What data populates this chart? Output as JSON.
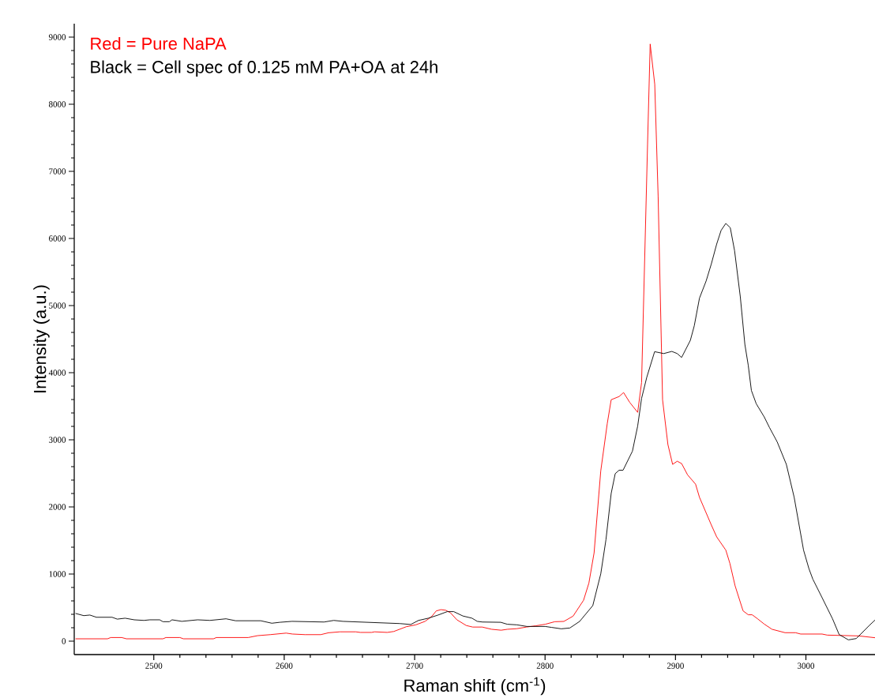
{
  "chart_data": {
    "type": "line",
    "xlabel": "Raman shift (cm$^{-1}$)",
    "ylabel": "Intensity (a.u.)",
    "annotations": [
      "Red = Pure NaPA",
      "Black = Cell spec of 0.125 mM PA+OA at 24h"
    ],
    "xlim": [
      2439,
      3053
    ],
    "ylim": [
      -200,
      9200
    ],
    "xticks": [
      2500,
      2600,
      2700,
      2800,
      2900,
      3000
    ],
    "yticks": [
      0,
      1000,
      2000,
      3000,
      4000,
      5000,
      6000,
      7000,
      8000,
      9000
    ],
    "grid": false,
    "marker": "none",
    "line_style": "solid",
    "series": [
      {
        "color": "#ff0000",
        "x": [
          2440,
          2464.5,
          2467,
          2475.4,
          2479,
          2507,
          2509.3,
          2520,
          2522.7,
          2545.7,
          2548,
          2572.4,
          2579.6,
          2589.3,
          2601.5,
          2606.3,
          2616,
          2628,
          2634,
          2642.7,
          2654.8,
          2658.4,
          2667,
          2669.3,
          2679,
          2684,
          2693.6,
          2700.9,
          2708,
          2713,
          2716.6,
          2720.2,
          2723.9,
          2727.5,
          2732.4,
          2739.6,
          2744.5,
          2751.8,
          2759,
          2766.3,
          2771.2,
          2778.4,
          2785.7,
          2793,
          2800.2,
          2807.5,
          2814.4,
          2821.5,
          2829.5,
          2833.6,
          2837.6,
          2842.7,
          2847.7,
          2850.7,
          2856.8,
          2860.2,
          2864.9,
          2871,
          2874,
          2878.6,
          2880.6,
          2884.1,
          2886.7,
          2890.1,
          2894.2,
          2897.8,
          2901.3,
          2904.7,
          2909.3,
          2915.4,
          2918.4,
          2927.5,
          2931.6,
          2938.6,
          2941.7,
          2945.7,
          2951.8,
          2955.8,
          2958.8,
          2962.9,
          2968,
          2974,
          2984,
          2992,
          2996,
          3012.4,
          3016.4,
          3024.5,
          3040.6,
          3053
        ],
        "values": [
          35,
          35,
          54,
          54,
          35,
          35,
          54,
          54,
          35,
          35,
          54,
          54,
          82,
          97,
          120,
          106,
          97,
          97,
          125,
          139,
          139,
          130,
          130,
          139,
          130,
          144,
          215,
          243,
          295,
          366,
          451,
          469,
          460,
          422,
          318,
          233,
          210,
          210,
          177,
          163,
          177,
          186,
          210,
          229,
          252,
          290,
          294,
          373,
          609,
          865,
          1317,
          2536,
          3243,
          3597,
          3645,
          3704,
          3558,
          3409,
          3853,
          7411,
          8897,
          8296,
          6625,
          3597,
          2929,
          2634,
          2681,
          2646,
          2477,
          2339,
          2143,
          1730,
          1553,
          1356,
          1160,
          825,
          452,
          393,
          393,
          334,
          255,
          177,
          126,
          126,
          106,
          106,
          90,
          86,
          78,
          51
        ]
      },
      {
        "color": "#000000",
        "x": [
          2440,
          2446.3,
          2451,
          2456,
          2468,
          2472,
          2478,
          2485,
          2492.4,
          2497,
          2504.5,
          2507,
          2512,
          2514,
          2521.5,
          2533.6,
          2543,
          2555.4,
          2562.7,
          2582,
          2590.5,
          2596.6,
          2606,
          2630.5,
          2638,
          2645,
          2688.7,
          2697,
          2703,
          2710.5,
          2718,
          2725,
          2730,
          2737,
          2744,
          2748,
          2752,
          2766,
          2771,
          2778.5,
          2786,
          2800,
          2805,
          2812.4,
          2819,
          2826.5,
          2836.6,
          2842.7,
          2846.7,
          2850.7,
          2853.8,
          2856.8,
          2859.8,
          2867,
          2871,
          2874,
          2878,
          2884,
          2891,
          2897.2,
          2901.3,
          2904.7,
          2911.4,
          2914.4,
          2918.4,
          2923.5,
          2927.5,
          2931.6,
          2935,
          2938.6,
          2942,
          2945.3,
          2949.7,
          2953.2,
          2955.8,
          2958.2,
          2961.9,
          2968,
          2972,
          2978,
          2985,
          2991,
          2998.2,
          3002.3,
          3005.3,
          3012.4,
          3020.4,
          3025.5,
          3032.6,
          3038.6,
          3042.7,
          3048.7,
          3053
        ],
        "values": [
          413,
          380,
          389,
          356,
          356,
          328,
          342,
          318,
          309,
          318,
          318,
          290,
          290,
          318,
          295,
          318,
          309,
          333,
          304,
          304,
          267,
          281,
          295,
          285,
          309,
          295,
          262,
          248,
          309,
          342,
          389,
          440,
          440,
          375,
          342,
          295,
          285,
          281,
          252,
          243,
          219,
          219,
          205,
          184,
          196,
          294,
          530,
          1002,
          1513,
          2201,
          2496,
          2547,
          2547,
          2831,
          3204,
          3617,
          3932,
          4313,
          4285,
          4317,
          4285,
          4227,
          4482,
          4698,
          5111,
          5366,
          5622,
          5917,
          6121,
          6224,
          6161,
          5819,
          5130,
          4423,
          4109,
          3735,
          3538,
          3342,
          3185,
          2968,
          2634,
          2143,
          1356,
          1081,
          924,
          648,
          334,
          98,
          19,
          39,
          118,
          236,
          314
        ]
      }
    ]
  }
}
